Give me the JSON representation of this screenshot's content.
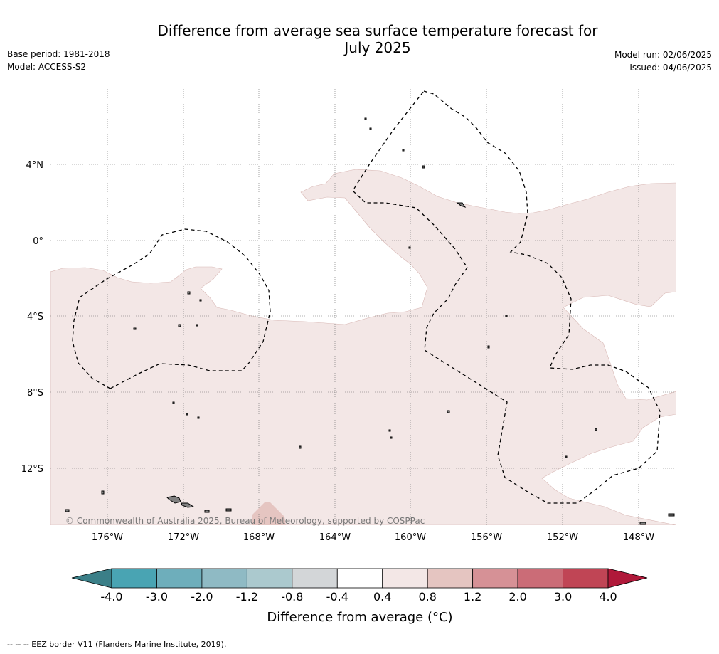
{
  "header": {
    "title_line1": "Difference from average sea surface temperature forecast for",
    "title_line2": "July 2025",
    "base_period": "Base period: 1981-2018",
    "model": "Model: ACCESS-S2",
    "model_run": "Model run: 02/06/2025",
    "issued": "Issued: 04/06/2025"
  },
  "map": {
    "lat_labels": [
      "4°N",
      "0°",
      "4°S",
      "8°S",
      "12°S"
    ],
    "lon_labels": [
      "176°W",
      "172°W",
      "168°W",
      "164°W",
      "160°W",
      "156°W",
      "152°W",
      "148°W"
    ],
    "copyright": "© Commonwealth of Australia 2025, Bureau of Meteorology, supported by COSPPac",
    "colors": {
      "ocean": "#ffffff",
      "anomaly_0_4_to_0_8": "#f3e7e6",
      "anomaly_0_8_to_1_2": "#e5c5c1",
      "land": "#808080"
    }
  },
  "colorbar": {
    "tick_labels": [
      "-4.0",
      "-3.0",
      "-2.0",
      "-1.2",
      "-0.8",
      "-0.4",
      "0.4",
      "0.8",
      "1.2",
      "2.0",
      "3.0",
      "4.0"
    ],
    "colors": [
      "#3b7f88",
      "#49a4b3",
      "#6eaebb",
      "#8fbac4",
      "#abc9ce",
      "#d3d6d8",
      "#ffffff",
      "#f3e7e6",
      "#e5c5c1",
      "#d69196",
      "#cb6c77",
      "#c04555",
      "#b0193a"
    ],
    "label": "Difference from average (°C)"
  },
  "footnote": "--  --  -- EEZ border V11 (Flanders Marine Institute, 2019)."
}
